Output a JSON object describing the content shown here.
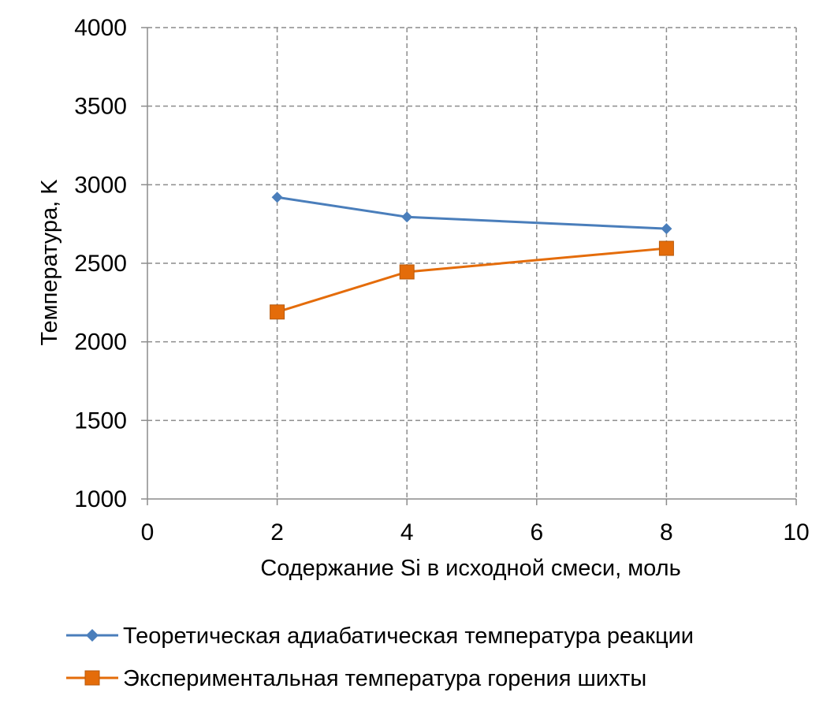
{
  "chart_data": {
    "type": "line",
    "title": "",
    "xlabel": "Содержание Si в исходной смеси, моль",
    "ylabel": "Температура, K",
    "xlim": [
      0,
      10
    ],
    "ylim": [
      1000,
      4000
    ],
    "x_ticks": [
      "0",
      "2",
      "4",
      "6",
      "8",
      "10"
    ],
    "y_ticks": [
      "1000",
      "1500",
      "2000",
      "2500",
      "3000",
      "3500",
      "4000"
    ],
    "grid": true,
    "legend_position": "bottom",
    "series": [
      {
        "name": "Теоретическая адиабатическая температура реакции",
        "color": "#4a7ebb",
        "marker": "diamond",
        "x": [
          2,
          4,
          8
        ],
        "y": [
          2920,
          2795,
          2720
        ]
      },
      {
        "name": "Экспериментальная температура горения шихты",
        "color": "#e46c0a",
        "marker": "square",
        "x": [
          2,
          4,
          8
        ],
        "y": [
          2190,
          2445,
          2595
        ]
      }
    ]
  }
}
